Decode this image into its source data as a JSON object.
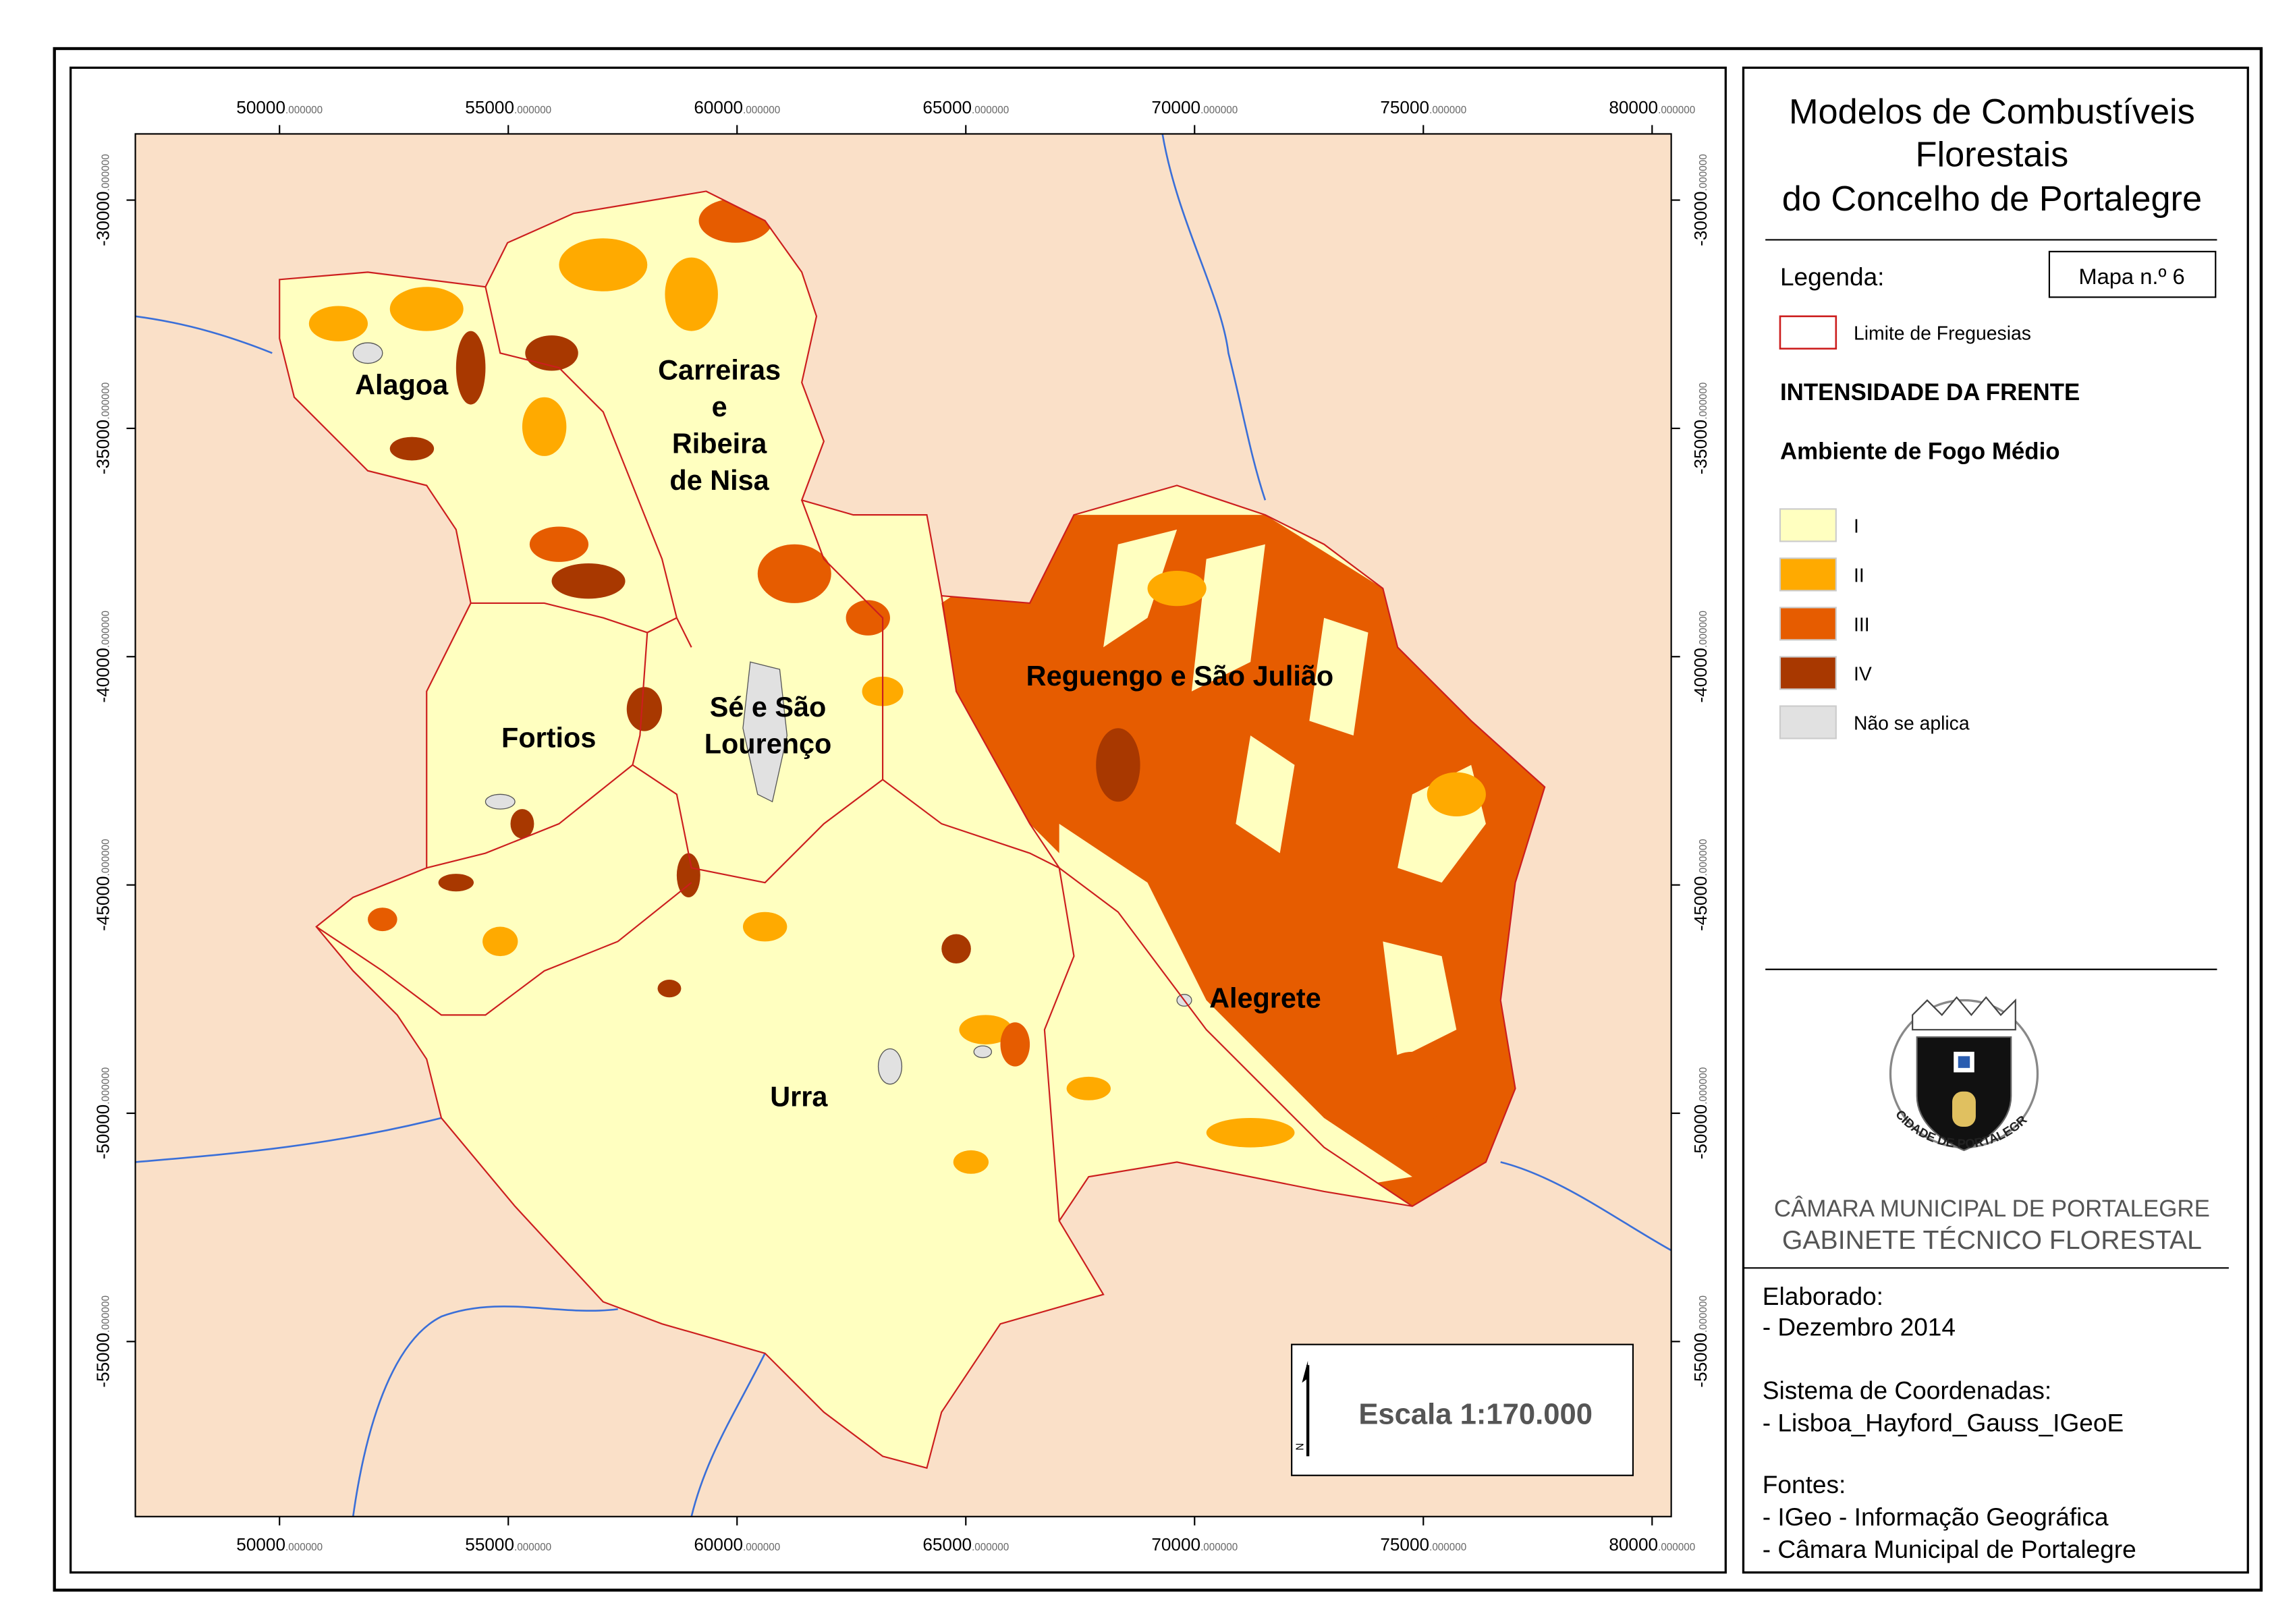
{
  "map": {
    "x_ticks": [
      {
        "main": "50000",
        "frac": ".000000"
      },
      {
        "main": "55000",
        "frac": ".000000"
      },
      {
        "main": "60000",
        "frac": ".000000"
      },
      {
        "main": "65000",
        "frac": ".000000"
      },
      {
        "main": "70000",
        "frac": ".000000"
      },
      {
        "main": "75000",
        "frac": ".000000"
      },
      {
        "main": "80000",
        "frac": ".000000"
      }
    ],
    "y_ticks": [
      {
        "main": "-30000",
        "frac": ".000000"
      },
      {
        "main": "-35000",
        "frac": ".000000"
      },
      {
        "main": "-40000",
        "frac": ".000000"
      },
      {
        "main": "-45000",
        "frac": ".000000"
      },
      {
        "main": "-50000",
        "frac": ".000000"
      },
      {
        "main": "-55000",
        "frac": ".000000"
      }
    ],
    "place_labels": [
      {
        "lines": [
          "Alagoa"
        ]
      },
      {
        "lines": [
          "Carreiras",
          "e",
          "Ribeira",
          "de Nisa"
        ]
      },
      {
        "lines": [
          "Sé e São",
          "Lourenço"
        ]
      },
      {
        "lines": [
          "Fortios"
        ]
      },
      {
        "lines": [
          "Reguengo e São Julião"
        ]
      },
      {
        "lines": [
          "Alegrete"
        ]
      },
      {
        "lines": [
          "Urra"
        ]
      }
    ],
    "scale": "Escala 1:170.000",
    "north": "N"
  },
  "panel": {
    "title": [
      "Modelos de Combustíveis",
      "Florestais",
      "do Concelho de Portalegre"
    ],
    "legend_heading": "Legenda:",
    "map_number": "Mapa n.º 6",
    "boundary": "Limite de Freguesias",
    "subtitle1": "INTENSIDADE DA FRENTE",
    "subtitle2": "Ambiente de Fogo Médio",
    "classes": [
      {
        "label": "I",
        "color": "#ffffc0"
      },
      {
        "label": "II",
        "color": "#ffaa00"
      },
      {
        "label": "III",
        "color": "#e65c00"
      },
      {
        "label": "IV",
        "color": "#a83800"
      },
      {
        "label": "Não se aplica",
        "color": "#e1e1e1"
      }
    ],
    "seal_text": "CIDADE DE PORTALEGRE",
    "org": [
      "CÂMARA MUNICIPAL DE PORTALEGRE",
      "GABINETE TÉCNICO FLORESTAL"
    ],
    "credits": [
      "Elaborado:",
      "- Dezembro 2014",
      "Sistema de Coordenadas:",
      "- Lisboa_Hayford_Gauss_IGeoE",
      "Fontes:",
      "- IGeo - Informação Geográfica",
      "- Câmara Municipal de Portalegre"
    ]
  }
}
